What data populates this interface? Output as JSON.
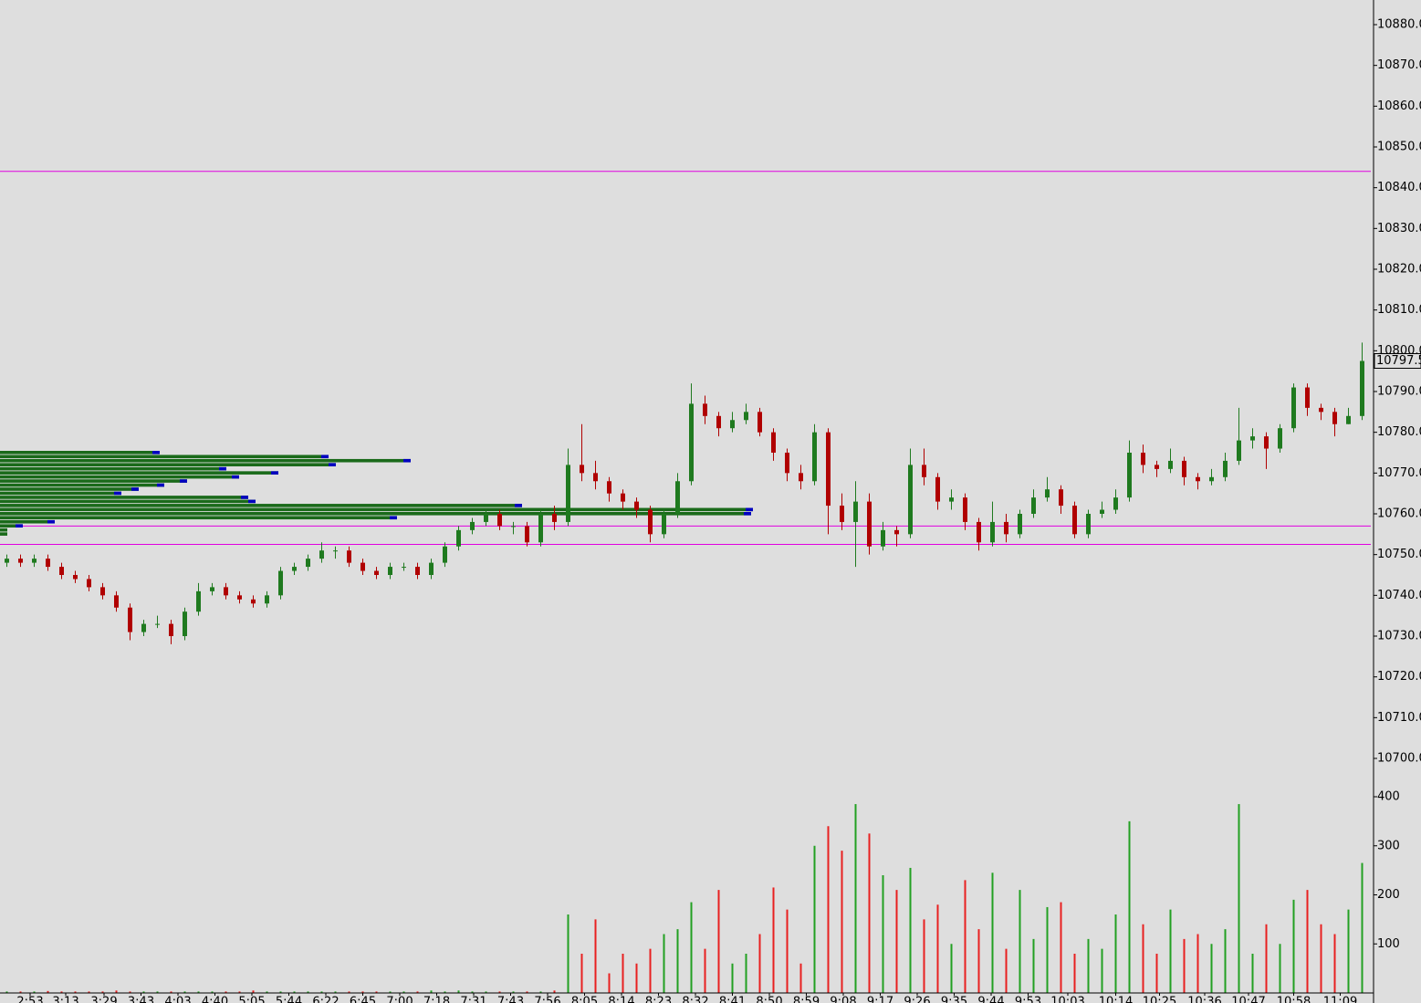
{
  "chart_data": {
    "type": "candlestick",
    "up_color": "#1f7a1f",
    "down_color": "#b00000",
    "volume_up_color": "#22a022",
    "volume_down_color": "#e82020",
    "level_color": "#e000e0",
    "xlim": [
      -0.5,
      99.5
    ],
    "ylim": [
      10700,
      10880
    ],
    "yticks": [
      {
        "value": 10880,
        "label": "10880.0"
      },
      {
        "value": 10870,
        "label": "10870.0"
      },
      {
        "value": 10860,
        "label": "10860.0"
      },
      {
        "value": 10850,
        "label": "10850.0"
      },
      {
        "value": 10840,
        "label": "10840.0"
      },
      {
        "value": 10830,
        "label": "10830.0"
      },
      {
        "value": 10820,
        "label": "10820.0"
      },
      {
        "value": 10810,
        "label": "10810.0"
      },
      {
        "value": 10800,
        "label": "10800.0"
      },
      {
        "value": 10790,
        "label": "10790.0"
      },
      {
        "value": 10780,
        "label": "10780.0"
      },
      {
        "value": 10770,
        "label": "10770.0"
      },
      {
        "value": 10760,
        "label": "10760.0"
      },
      {
        "value": 10750,
        "label": "10750.0"
      },
      {
        "value": 10740,
        "label": "10740.0"
      },
      {
        "value": 10730,
        "label": "10730.0"
      },
      {
        "value": 10720,
        "label": "10720.0"
      },
      {
        "value": 10710,
        "label": "10710.0"
      },
      {
        "value": 10700,
        "label": "10700.0"
      }
    ],
    "last_price": 10797.5,
    "levels": [
      10844,
      10757,
      10752.5
    ],
    "xticks": [
      {
        "value": 1.7,
        "label": "2:53"
      },
      {
        "value": 4.3,
        "label": "3:13"
      },
      {
        "value": 7.1,
        "label": "3:29"
      },
      {
        "value": 9.8,
        "label": "3:43"
      },
      {
        "value": 12.5,
        "label": "4:03"
      },
      {
        "value": 15.2,
        "label": "4:40"
      },
      {
        "value": 17.9,
        "label": "5:05"
      },
      {
        "value": 20.6,
        "label": "5:44"
      },
      {
        "value": 23.3,
        "label": "6:22"
      },
      {
        "value": 26,
        "label": "6:45"
      },
      {
        "value": 28.7,
        "label": "7:00"
      },
      {
        "value": 31.4,
        "label": "7:18"
      },
      {
        "value": 34.1,
        "label": "7:31"
      },
      {
        "value": 36.8,
        "label": "7:43"
      },
      {
        "value": 39.5,
        "label": "7:56"
      },
      {
        "value": 42.2,
        "label": "8:05"
      },
      {
        "value": 44.9,
        "label": "8:14"
      },
      {
        "value": 47.6,
        "label": "8:23"
      },
      {
        "value": 50.3,
        "label": "8:32"
      },
      {
        "value": 53,
        "label": "8:41"
      },
      {
        "value": 55.7,
        "label": "8:50"
      },
      {
        "value": 58.4,
        "label": "8:59"
      },
      {
        "value": 61.1,
        "label": "9:08"
      },
      {
        "value": 63.8,
        "label": "9:17"
      },
      {
        "value": 66.5,
        "label": "9:26"
      },
      {
        "value": 69.2,
        "label": "9:35"
      },
      {
        "value": 71.9,
        "label": "9:44"
      },
      {
        "value": 74.6,
        "label": "9:53"
      },
      {
        "value": 77.5,
        "label": "10:03"
      },
      {
        "value": 81,
        "label": "10:14"
      },
      {
        "value": 84.2,
        "label": "10:25"
      },
      {
        "value": 87.5,
        "label": "10:36"
      },
      {
        "value": 90.7,
        "label": "10:47"
      },
      {
        "value": 94,
        "label": "10:58"
      },
      {
        "value": 97.4,
        "label": "11:09"
      }
    ],
    "open": [
      10748,
      10749,
      10748,
      10749,
      10747,
      10745,
      10744,
      10742,
      10740,
      10737,
      10731,
      10733,
      10733,
      10730,
      10736,
      10741,
      10742,
      10740,
      10739,
      10738,
      10740,
      10746,
      10747,
      10749,
      10751,
      10751,
      10748,
      10746,
      10745,
      10747,
      10747,
      10745,
      10748,
      10752,
      10756,
      10758,
      10760,
      10757,
      10757,
      10753,
      10760,
      10758,
      10772,
      10770,
      10768,
      10765,
      10763,
      10761,
      10755,
      10760,
      10768,
      10787,
      10784,
      10781,
      10783,
      10785,
      10780,
      10775,
      10770,
      10768,
      10780,
      10762,
      10758,
      10763,
      10752,
      10756,
      10755,
      10772,
      10769,
      10763,
      10764,
      10758,
      10753,
      10758,
      10755,
      10760,
      10764,
      10766,
      10762,
      10755,
      10760,
      10761,
      10764,
      10775,
      10772,
      10771,
      10773,
      10769,
      10768,
      10769,
      10773,
      10778,
      10779,
      10776,
      10781,
      10791,
      10786,
      10785,
      10782,
      10784
    ],
    "high": [
      10750,
      10750,
      10750,
      10750,
      10748,
      10746,
      10745,
      10743,
      10741,
      10738,
      10734,
      10735,
      10734,
      10737,
      10743,
      10743,
      10743,
      10741,
      10740,
      10741,
      10747,
      10748,
      10750,
      10753,
      10752,
      10752,
      10749,
      10747,
      10748,
      10748,
      10748,
      10749,
      10753,
      10757,
      10759,
      10761,
      10761,
      10758,
      10758,
      10761,
      10762,
      10776,
      10782,
      10773,
      10769,
      10766,
      10764,
      10762,
      10761,
      10770,
      10792,
      10789,
      10785,
      10785,
      10787,
      10786,
      10781,
      10776,
      10772,
      10782,
      10781,
      10765,
      10768,
      10765,
      10758,
      10757,
      10776,
      10776,
      10770,
      10766,
      10765,
      10759,
      10763,
      10760,
      10761,
      10766,
      10769,
      10767,
      10763,
      10761,
      10763,
      10766,
      10778,
      10777,
      10773,
      10776,
      10774,
      10770,
      10771,
      10775,
      10786,
      10781,
      10780,
      10782,
      10792,
      10792,
      10787,
      10786,
      10786,
      10802
    ],
    "low": [
      10747,
      10747,
      10747,
      10746,
      10744,
      10743,
      10741,
      10739,
      10736,
      10729,
      10730,
      10732,
      10728,
      10729,
      10735,
      10740,
      10739,
      10738,
      10737,
      10737,
      10739,
      10745,
      10746,
      10748,
      10749,
      10747,
      10745,
      10744,
      10744,
      10746,
      10744,
      10744,
      10747,
      10751,
      10755,
      10757,
      10756,
      10755,
      10752,
      10752,
      10756,
      10757,
      10768,
      10766,
      10763,
      10761,
      10759,
      10753,
      10754,
      10759,
      10767,
      10782,
      10779,
      10780,
      10782,
      10779,
      10773,
      10768,
      10766,
      10767,
      10755,
      10756,
      10747,
      10750,
      10751,
      10752,
      10754,
      10767,
      10761,
      10761,
      10756,
      10751,
      10752,
      10753,
      10754,
      10759,
      10763,
      10760,
      10754,
      10754,
      10759,
      10760,
      10763,
      10770,
      10769,
      10770,
      10767,
      10766,
      10767,
      10768,
      10772,
      10776,
      10771,
      10775,
      10780,
      10784,
      10783,
      10779,
      10782,
      10783
    ],
    "close": [
      10749,
      10748,
      10749,
      10747,
      10745,
      10744,
      10742,
      10740,
      10737,
      10731,
      10733,
      10733,
      10730,
      10736,
      10741,
      10742,
      10740,
      10739,
      10738,
      10740,
      10746,
      10747,
      10749,
      10751,
      10751,
      10748,
      10746,
      10745,
      10747,
      10747,
      10745,
      10748,
      10752,
      10756,
      10758,
      10760,
      10757,
      10757,
      10753,
      10760,
      10758,
      10772,
      10770,
      10768,
      10765,
      10763,
      10761,
      10755,
      10760,
      10768,
      10787,
      10784,
      10781,
      10783,
      10785,
      10780,
      10775,
      10770,
      10768,
      10780,
      10762,
      10758,
      10763,
      10752,
      10756,
      10755,
      10772,
      10769,
      10763,
      10764,
      10758,
      10753,
      10758,
      10755,
      10760,
      10764,
      10766,
      10762,
      10755,
      10760,
      10761,
      10764,
      10775,
      10772,
      10771,
      10773,
      10769,
      10768,
      10769,
      10773,
      10778,
      10779,
      10776,
      10781,
      10791,
      10786,
      10785,
      10782,
      10784,
      10797.5
    ],
    "volume": [
      3,
      3,
      3,
      4,
      3,
      3,
      3,
      3,
      5,
      3,
      3,
      3,
      3,
      3,
      3,
      3,
      3,
      3,
      5,
      3,
      3,
      3,
      3,
      3,
      3,
      3,
      3,
      3,
      3,
      3,
      3,
      5,
      3,
      5,
      3,
      3,
      3,
      3,
      3,
      3,
      5,
      160,
      80,
      150,
      40,
      80,
      60,
      90,
      120,
      130,
      185,
      90,
      210,
      60,
      80,
      120,
      215,
      170,
      60,
      300,
      340,
      290,
      385,
      325,
      240,
      210,
      255,
      150,
      180,
      100,
      230,
      130,
      245,
      90,
      210,
      110,
      175,
      185,
      80,
      110,
      90,
      160,
      350,
      140,
      80,
      170,
      110,
      120,
      100,
      130,
      385,
      80,
      140,
      100,
      190,
      210,
      140,
      120,
      170,
      265
    ],
    "volume_ylim": [
      0,
      400
    ],
    "volume_yticks": [
      100,
      200,
      300,
      400
    ],
    "volume_profile": {
      "color": "#1a6a1a",
      "cap_color": "#0000c0",
      "prices": [
        10775,
        10774,
        10773,
        10772,
        10771,
        10770,
        10769,
        10768,
        10767,
        10766,
        10765,
        10764,
        10763,
        10762,
        10761,
        10760,
        10759,
        10758,
        10757,
        10756,
        10755
      ],
      "volumes": [
        175,
        360,
        450,
        368,
        248,
        305,
        262,
        205,
        180,
        152,
        133,
        272,
        280,
        572,
        825,
        823,
        435,
        60,
        25,
        8,
        8
      ]
    }
  }
}
